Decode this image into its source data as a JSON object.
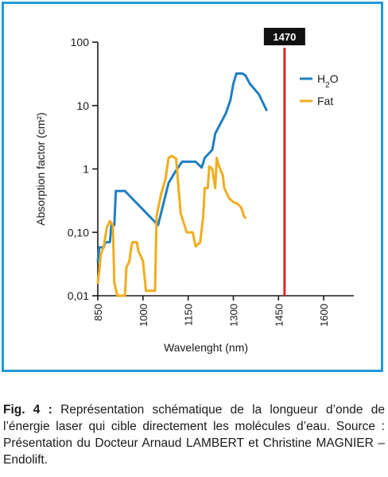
{
  "caption": {
    "label": "Fig. 4 :",
    "text": "Représentation schématique de la longueur d’onde de l’énergie laser qui cible directement les molécules d’eau. Source : Présentation du Docteur Arnaud LAMBERT et Christine MAGNIER – Endolift."
  },
  "chart_data": {
    "type": "line",
    "title": "",
    "xlabel": "Wavelenght (nm)",
    "ylabel": "Absorption factor (cm²)",
    "x_scale": "linear",
    "y_scale": "log",
    "xlim": [
      850,
      1700
    ],
    "ylim": [
      0.01,
      100
    ],
    "x_ticks": [
      850,
      1000,
      1150,
      1300,
      1450,
      1600
    ],
    "x_tick_labels": [
      "850",
      "1000",
      "1150",
      "1300",
      "1450",
      "1600"
    ],
    "y_ticks": [
      0.01,
      0.1,
      1,
      10,
      100
    ],
    "y_tick_labels": [
      "0,01",
      "0,10",
      "1",
      "10",
      "100"
    ],
    "grid": false,
    "legend_position": "top-right",
    "legend": [
      {
        "label": "H",
        "sub": "2",
        "suffix": "O",
        "color": "#1f7fc1"
      },
      {
        "label": "Fat",
        "sub": "",
        "suffix": "",
        "color": "#f2ac1c"
      }
    ],
    "marker": {
      "x": 1470,
      "label": "1470",
      "color": "#d9262b"
    },
    "series": [
      {
        "name": "H₂O",
        "color": "#1f7fc1",
        "points": [
          [
            850,
            0.035
          ],
          [
            855,
            0.058
          ],
          [
            870,
            0.058
          ],
          [
            875,
            0.07
          ],
          [
            890,
            0.07
          ],
          [
            895,
            0.13
          ],
          [
            905,
            0.13
          ],
          [
            910,
            0.45
          ],
          [
            940,
            0.45
          ],
          [
            1050,
            0.13
          ],
          [
            1085,
            0.6
          ],
          [
            1110,
            0.95
          ],
          [
            1130,
            1.3
          ],
          [
            1175,
            1.3
          ],
          [
            1195,
            1.05
          ],
          [
            1205,
            1.5
          ],
          [
            1230,
            2.0
          ],
          [
            1240,
            3.6
          ],
          [
            1260,
            5.5
          ],
          [
            1275,
            7.5
          ],
          [
            1290,
            12
          ],
          [
            1300,
            22
          ],
          [
            1310,
            32
          ],
          [
            1330,
            32
          ],
          [
            1340,
            30
          ],
          [
            1355,
            22
          ],
          [
            1385,
            15
          ],
          [
            1410,
            8.5
          ]
        ]
      },
      {
        "name": "Fat",
        "color": "#f2ac1c",
        "points": [
          [
            850,
            0.016
          ],
          [
            855,
            0.025
          ],
          [
            860,
            0.045
          ],
          [
            870,
            0.06
          ],
          [
            880,
            0.12
          ],
          [
            890,
            0.15
          ],
          [
            900,
            0.13
          ],
          [
            905,
            0.016
          ],
          [
            915,
            0.01
          ],
          [
            940,
            0.01
          ],
          [
            945,
            0.028
          ],
          [
            955,
            0.035
          ],
          [
            960,
            0.055
          ],
          [
            965,
            0.07
          ],
          [
            980,
            0.07
          ],
          [
            985,
            0.05
          ],
          [
            995,
            0.04
          ],
          [
            1000,
            0.035
          ],
          [
            1010,
            0.012
          ],
          [
            1040,
            0.012
          ],
          [
            1045,
            0.18
          ],
          [
            1060,
            0.4
          ],
          [
            1075,
            0.7
          ],
          [
            1085,
            1.5
          ],
          [
            1095,
            1.6
          ],
          [
            1110,
            1.45
          ],
          [
            1125,
            0.2
          ],
          [
            1140,
            0.12
          ],
          [
            1145,
            0.1
          ],
          [
            1165,
            0.1
          ],
          [
            1175,
            0.06
          ],
          [
            1190,
            0.07
          ],
          [
            1200,
            0.18
          ],
          [
            1205,
            0.5
          ],
          [
            1215,
            0.5
          ],
          [
            1220,
            1.1
          ],
          [
            1230,
            1.0
          ],
          [
            1240,
            0.5
          ],
          [
            1245,
            1.5
          ],
          [
            1250,
            1.2
          ],
          [
            1260,
            0.9
          ],
          [
            1265,
            0.8
          ],
          [
            1270,
            0.5
          ],
          [
            1285,
            0.35
          ],
          [
            1300,
            0.3
          ],
          [
            1315,
            0.28
          ],
          [
            1325,
            0.25
          ],
          [
            1330,
            0.22
          ],
          [
            1335,
            0.18
          ],
          [
            1340,
            0.17
          ]
        ]
      }
    ]
  }
}
